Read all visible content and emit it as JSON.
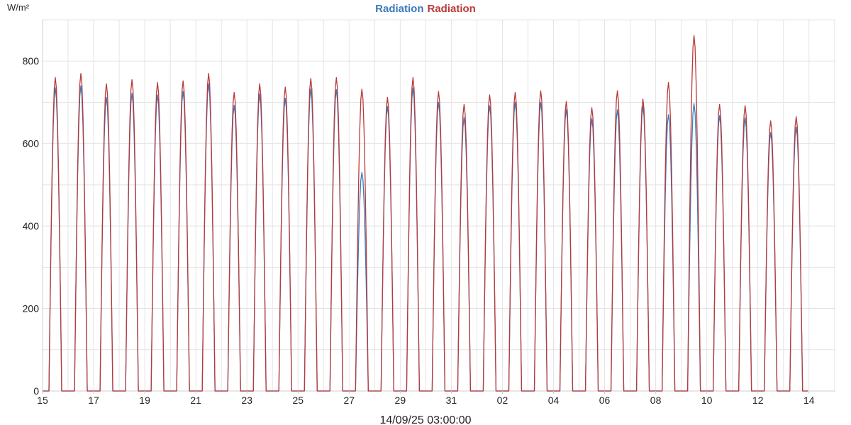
{
  "chart_data": {
    "type": "line",
    "title_parts": [
      "Radiation",
      "Radiation"
    ],
    "ylabel": "W/m²",
    "xlabel": "14/09/25 03:00:00",
    "ylim": [
      0,
      900
    ],
    "y_ticks": [
      0,
      200,
      400,
      600,
      800
    ],
    "x_ticks": [
      "15",
      "17",
      "19",
      "21",
      "23",
      "25",
      "27",
      "29",
      "31",
      "02",
      "04",
      "06",
      "08",
      "10",
      "12",
      "14"
    ],
    "grid": true,
    "series": [
      {
        "name": "Radiation",
        "color": "#3a7bbf",
        "daily_peaks": [
          735,
          740,
          712,
          722,
          718,
          727,
          745,
          693,
          720,
          710,
          732,
          731,
          530,
          690,
          735,
          700,
          663,
          692,
          700,
          700,
          683,
          660,
          682,
          690,
          670,
          697,
          668,
          662,
          627,
          640
        ]
      },
      {
        "name": "Radiation",
        "color": "#b83a3a",
        "daily_peaks": [
          760,
          770,
          745,
          755,
          748,
          752,
          770,
          724,
          745,
          737,
          758,
          760,
          732,
          712,
          760,
          726,
          695,
          718,
          724,
          728,
          702,
          687,
          728,
          708,
          748,
          862,
          695,
          692,
          655,
          665
        ]
      }
    ]
  },
  "colors": {
    "series_a": "#3a7bbf",
    "series_b": "#b83a3a",
    "grid": "#e4e4e4"
  }
}
